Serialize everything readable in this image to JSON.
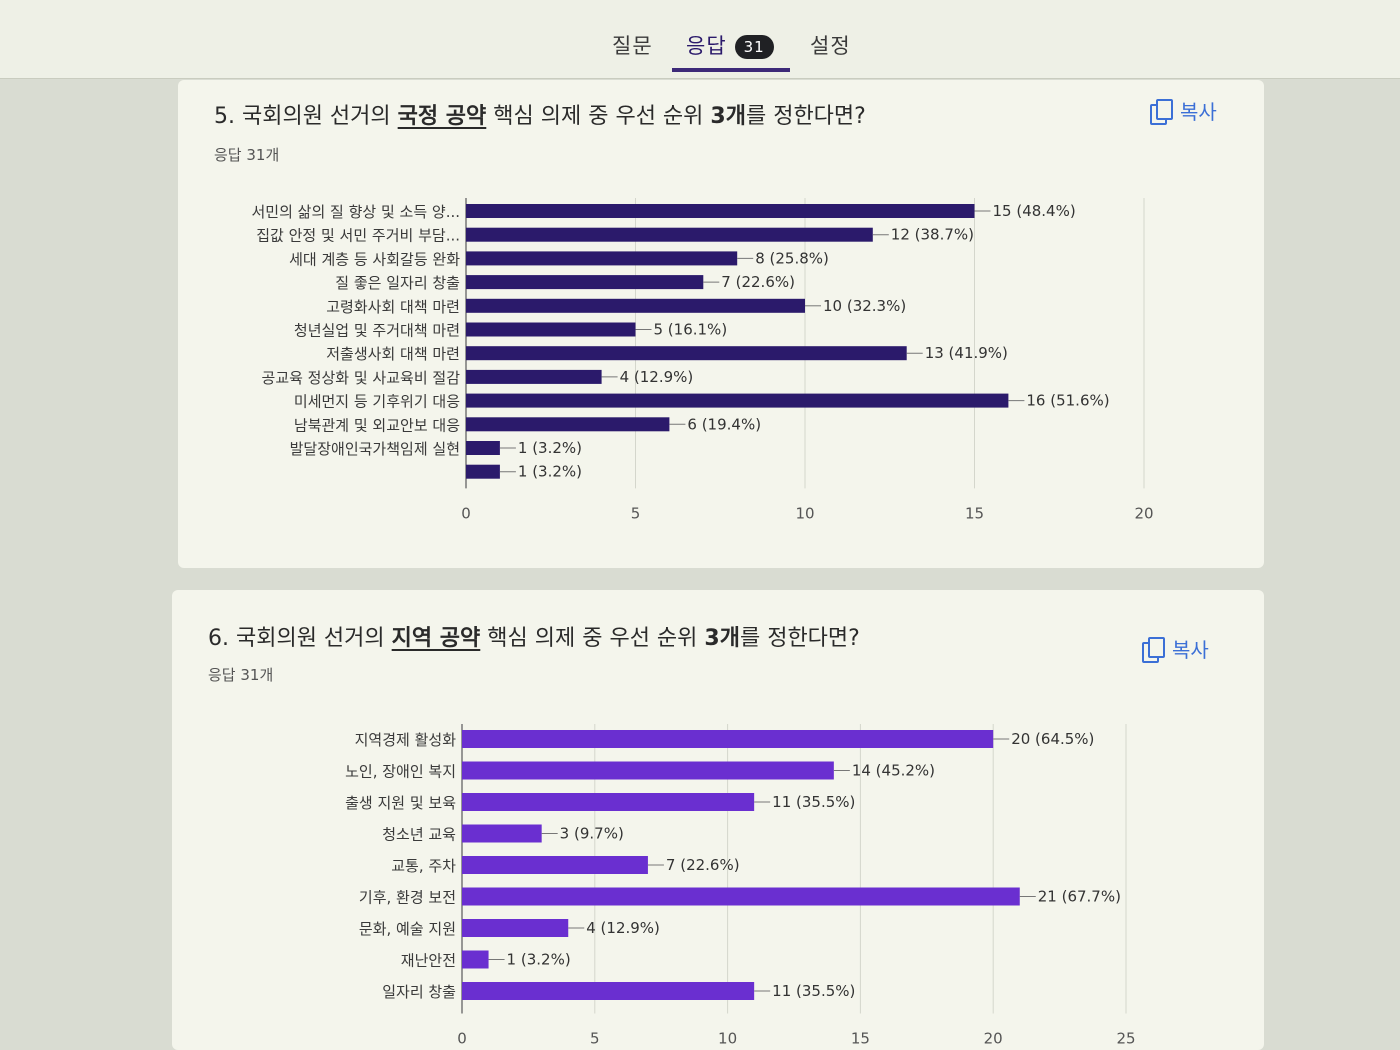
{
  "tabs": [
    {
      "label": "질문"
    },
    {
      "label": "응답",
      "badge": "31"
    },
    {
      "label": "설정"
    }
  ],
  "questions": [
    {
      "title_parts": [
        "5. 국회의원 선거의 ",
        "국정 공약",
        " 핵심 의제 중 우선 순위 ",
        "3개",
        "를 정한다면?"
      ],
      "responses": "응답 31개",
      "copy_label": "복사"
    },
    {
      "title_parts": [
        "6. 국회의원 선거의 ",
        "지역 공약",
        " 핵심 의제 중 우선 순위 ",
        "3개",
        "를 정한다면?"
      ],
      "responses": "응답 31개",
      "copy_label": "복사"
    }
  ],
  "chart_data": [
    {
      "type": "bar",
      "orientation": "horizontal",
      "color": "#2b1a6b",
      "categories": [
        "서민의 삶의 질 향상 및 소득 양...",
        "집값 안정 및 서민 주거비 부담...",
        "세대 계층 등 사회갈등 완화",
        "질 좋은 일자리 창출",
        "고령화사회 대책 마련",
        "청년실업 및 주거대책 마련",
        "저출생사회 대책 마련",
        "공교육 정상화 및 사교육비 절감",
        "미세먼지 등 기후위기 대응",
        "남북관계 및 외교안보 대응",
        "발달장애인국가책임제 실현",
        ""
      ],
      "values": [
        15,
        12,
        8,
        7,
        10,
        5,
        13,
        4,
        16,
        6,
        1,
        1
      ],
      "labels": [
        "15 (48.4%)",
        "12 (38.7%)",
        "8 (25.8%)",
        "7 (22.6%)",
        "10 (32.3%)",
        "5 (16.1%)",
        "13 (41.9%)",
        "4 (12.9%)",
        "16 (51.6%)",
        "6 (19.4%)",
        "1 (3.2%)",
        "1 (3.2%)"
      ],
      "xlim": [
        0,
        20
      ],
      "xticks": [
        "0",
        "5",
        "10",
        "15",
        "20"
      ]
    },
    {
      "type": "bar",
      "orientation": "horizontal",
      "color": "#6a2fd0",
      "categories": [
        "지역경제 활성화",
        "노인, 장애인 복지",
        "출생 지원 및 보육",
        "청소년 교육",
        "교통, 주차",
        "기후, 환경 보전",
        "문화, 예술 지원",
        "재난안전",
        "일자리 창출"
      ],
      "values": [
        20,
        14,
        11,
        3,
        7,
        21,
        4,
        1,
        11
      ],
      "labels": [
        "20 (64.5%)",
        "14 (45.2%)",
        "11 (35.5%)",
        "3 (9.7%)",
        "7 (22.6%)",
        "21 (67.7%)",
        "4 (12.9%)",
        "1 (3.2%)",
        "11 (35.5%)"
      ],
      "xlim": [
        0,
        25
      ],
      "xticks": [
        "0",
        "5",
        "10",
        "15",
        "20",
        "25"
      ]
    }
  ]
}
